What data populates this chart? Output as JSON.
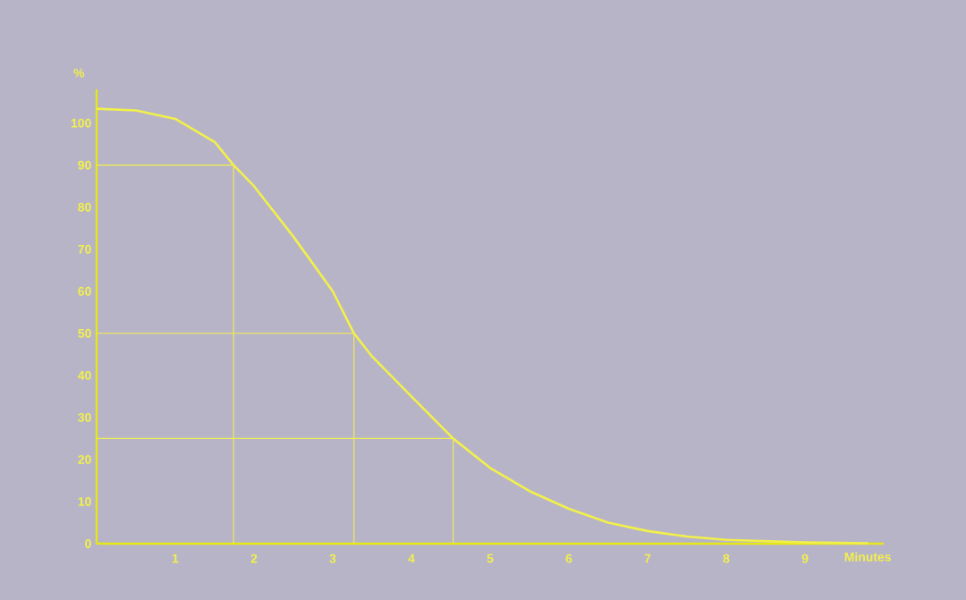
{
  "chart_data": {
    "type": "line",
    "xlabel": "Minutes",
    "ylabel": "%",
    "xlim": [
      0,
      10
    ],
    "ylim": [
      0,
      108
    ],
    "xticks": [
      1,
      2,
      3,
      4,
      5,
      6,
      7,
      8,
      9
    ],
    "yticks": [
      0,
      10,
      20,
      30,
      40,
      50,
      60,
      70,
      80,
      90,
      100
    ],
    "marker": "none",
    "line_style": "solid",
    "series": [
      {
        "color": "#f2f04a",
        "x": [
          0,
          0.5,
          1,
          1.5,
          1.74,
          2,
          2.5,
          3,
          3.27,
          3.5,
          4,
          4.53,
          5,
          5.5,
          6,
          6.5,
          7,
          7.5,
          8,
          9,
          9.8
        ],
        "values": [
          103.4,
          103,
          101,
          95.5,
          90,
          85,
          73,
          60,
          50,
          44.5,
          35,
          25,
          18,
          12.5,
          8.3,
          5,
          3,
          1.7,
          0.9,
          0.3,
          0.1
        ]
      },
      {
        "color": "#f2f04a",
        "x": [
          0,
          1.74,
          1.74
        ],
        "values": [
          90,
          90,
          0
        ]
      },
      {
        "color": "#f2f04a",
        "x": [
          0,
          3.27,
          3.27
        ],
        "values": [
          50,
          50,
          0
        ]
      },
      {
        "color": "#f2f04a",
        "x": [
          0,
          4.53,
          4.53
        ],
        "values": [
          25,
          25,
          0
        ]
      }
    ]
  }
}
